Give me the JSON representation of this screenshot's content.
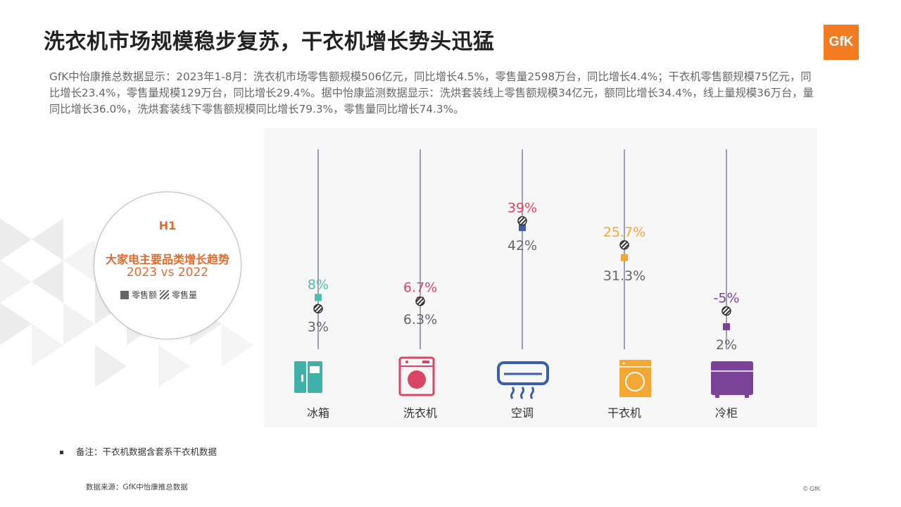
{
  "title": "洗衣机市场规模稳步复苏，干衣机增长势头迅猛",
  "logo_text": "GfK",
  "description": "GfK中怡康推总数据显示：2023年1-8月：洗衣机市场零售额规模506亿元，同比增长4.5%，零售量2598万台，同比增长4.4%；干衣机零售额规模75亿元，同比增长23.4%，零售量规模129万台，同比增长29.4%。据中怡康监测数据显示：洗烘套装线上零售额规模34亿元，额同比增长34.4%，线上量规模36万台，量同比增长36.0%，洗烘套装线下零售额规模同比增长79.3%，零售量同比增长74.3%。",
  "legend_box": {
    "h1": "H1",
    "subtitle": "大家电主要品类增长趋势",
    "compare": "2023 vs 2022",
    "solid_label": "零售额",
    "hatch_label": "零售量"
  },
  "note": "备注：干衣机数据含套系干衣机数据",
  "source": "数据来源：GfK中怡康推总数据",
  "copyright": "© GfK",
  "chart_data": {
    "type": "dot-strip",
    "series": [
      {
        "name": "零售额",
        "marker": "solid-square"
      },
      {
        "name": "零售量",
        "marker": "hatched-circle"
      }
    ],
    "categories": [
      {
        "label": "冰箱",
        "icon": "fridge-icon",
        "color": "#52bbb0",
        "sales_value": 8,
        "sales_value_label": "8%",
        "volume_value": 3,
        "volume_value_label": "3%"
      },
      {
        "label": "洗衣机",
        "icon": "washing-machine-icon",
        "color": "#d94564",
        "sales_value": 6.7,
        "sales_value_label": "6.7%",
        "volume_value": 6.3,
        "volume_value_label": "6.3%"
      },
      {
        "label": "空调",
        "icon": "air-conditioner-icon",
        "color": "#d94564",
        "marker_color": "#3a5ea8",
        "sales_value": 39,
        "sales_value_label": "39%",
        "volume_value": 42,
        "volume_value_label": "42%"
      },
      {
        "label": "干衣机",
        "icon": "dryer-icon",
        "color": "#f5a734",
        "sales_value": 25.7,
        "sales_value_label": "25.7%",
        "volume_value": 31.3,
        "volume_value_label": "31.3%"
      },
      {
        "label": "冷柜",
        "icon": "freezer-icon",
        "color": "#7b4397",
        "sales_value": -5,
        "sales_value_label": "-5%",
        "volume_value": 2,
        "volume_value_label": "2%"
      }
    ],
    "value_label_color": "#666666",
    "icon_color": "#3a5ea8"
  }
}
